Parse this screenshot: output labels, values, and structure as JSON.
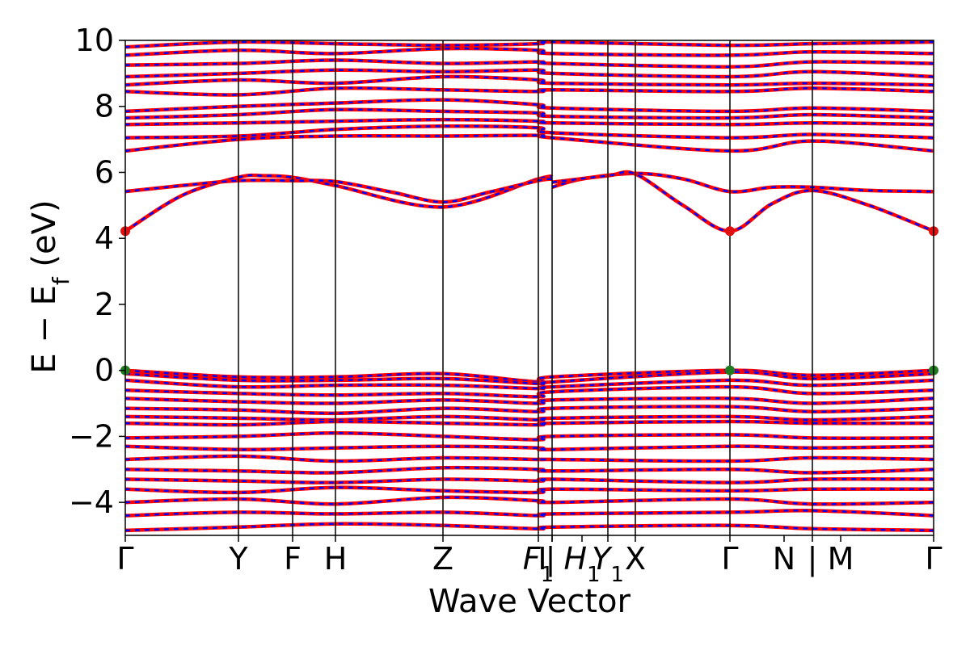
{
  "chart_data": {
    "type": "line",
    "title": "",
    "xlabel": "Wave Vector",
    "ylabel_main": "E − E",
    "ylabel_sub": "f",
    "ylabel_unit": " (eV)",
    "ylim": [
      -5,
      10
    ],
    "yticks": [
      "−4",
      "−2",
      "0",
      "2",
      "4",
      "6",
      "8",
      "10"
    ],
    "ytick_values": [
      -4,
      -2,
      0,
      2,
      4,
      6,
      8,
      10
    ],
    "xlim": [
      0,
      1
    ],
    "kpoints": [
      {
        "label": "Γ",
        "x": 0.0
      },
      {
        "label": "Y",
        "x": 0.14
      },
      {
        "label": "F",
        "x": 0.207
      },
      {
        "label": "H",
        "x": 0.26
      },
      {
        "label": "Z",
        "x": 0.393
      },
      {
        "label": "F",
        "sub": "1",
        "x": 0.511
      },
      {
        "label": "I",
        "x": 0.528
      },
      {
        "label": "|",
        "x": 0.528
      },
      {
        "label": "H",
        "sub": "1",
        "x": 0.565
      },
      {
        "label": "Y",
        "sub": "1",
        "x": 0.597
      },
      {
        "label": "X",
        "x": 0.631
      },
      {
        "label": "Γ",
        "x": 0.748
      },
      {
        "label": "N",
        "x": 0.815
      },
      {
        "label": "|",
        "x": 0.85
      },
      {
        "label": "M",
        "x": 0.885
      },
      {
        "label": "Γ",
        "x": 1.0
      }
    ],
    "vlines": [
      0.14,
      0.207,
      0.26,
      0.393,
      0.511,
      0.528,
      0.597,
      0.631,
      0.748,
      0.85
    ],
    "series": [
      {
        "values_x": [
          0.0,
          0.07,
          0.14,
          0.17,
          0.207,
          0.26,
          0.393,
          0.511,
          0.528
        ],
        "values_y": [
          4.22,
          5.3,
          5.85,
          5.9,
          5.85,
          5.6,
          4.95,
          5.8,
          5.85
        ]
      },
      {
        "values_x": [
          0.0,
          0.07,
          0.14,
          0.207,
          0.26,
          0.33,
          0.393,
          0.45,
          0.511,
          0.528
        ],
        "values_y": [
          5.42,
          5.6,
          5.75,
          5.75,
          5.72,
          5.4,
          5.1,
          5.4,
          5.75,
          5.8
        ]
      },
      {
        "values_x": [
          0.528,
          0.565,
          0.631,
          0.69,
          0.748,
          0.8,
          0.85,
          0.92,
          1.0
        ],
        "values_y": [
          5.55,
          5.8,
          5.97,
          5.8,
          5.42,
          5.55,
          5.55,
          5.45,
          5.42
        ]
      },
      {
        "values_x": [
          0.528,
          0.597,
          0.631,
          0.69,
          0.748,
          0.8,
          0.85,
          0.92,
          1.0
        ],
        "values_y": [
          5.7,
          5.9,
          5.95,
          5.0,
          4.22,
          5.05,
          5.45,
          5.0,
          4.22
        ]
      },
      {
        "values_x": [
          0.0,
          0.14,
          0.26,
          0.393,
          0.511,
          0.528,
          0.748,
          0.85,
          1.0
        ],
        "values_y": [
          6.65,
          7.0,
          7.1,
          7.1,
          7.12,
          7.05,
          6.65,
          6.95,
          6.65
        ]
      },
      {
        "values_x": [
          0.0,
          0.14,
          0.26,
          0.393,
          0.511,
          0.528,
          0.748,
          0.85,
          1.0
        ],
        "values_y": [
          7.05,
          7.1,
          7.3,
          7.4,
          7.35,
          7.2,
          7.05,
          7.15,
          7.05
        ]
      },
      {
        "values_x": [
          0.0,
          0.14,
          0.26,
          0.393,
          0.511,
          0.528,
          0.748,
          0.85,
          1.0
        ],
        "values_y": [
          7.45,
          7.5,
          7.55,
          7.6,
          7.55,
          7.5,
          7.45,
          7.5,
          7.45
        ]
      },
      {
        "values_x": [
          0.0,
          0.14,
          0.26,
          0.393,
          0.511,
          0.528,
          0.748,
          0.85,
          1.0
        ],
        "values_y": [
          7.65,
          7.75,
          7.9,
          7.85,
          7.8,
          7.7,
          7.65,
          7.75,
          7.65
        ]
      },
      {
        "values_x": [
          0.0,
          0.14,
          0.26,
          0.393,
          0.511,
          0.528,
          0.748,
          0.85,
          1.0
        ],
        "values_y": [
          7.85,
          8.0,
          8.1,
          8.2,
          8.05,
          7.95,
          7.85,
          7.95,
          7.85
        ]
      },
      {
        "values_x": [
          0.0,
          0.14,
          0.26,
          0.393,
          0.511,
          0.528,
          0.748,
          0.85,
          1.0
        ],
        "values_y": [
          8.45,
          8.35,
          8.55,
          8.5,
          8.45,
          8.5,
          8.45,
          8.55,
          8.45
        ]
      },
      {
        "values_x": [
          0.0,
          0.14,
          0.26,
          0.393,
          0.511,
          0.528,
          0.748,
          0.85,
          1.0
        ],
        "values_y": [
          8.65,
          8.8,
          8.7,
          8.9,
          8.8,
          8.7,
          8.65,
          8.7,
          8.65
        ]
      },
      {
        "values_x": [
          0.0,
          0.14,
          0.26,
          0.393,
          0.511,
          0.528,
          0.748,
          0.85,
          1.0
        ],
        "values_y": [
          8.9,
          9.0,
          9.1,
          9.05,
          9.1,
          9.0,
          8.9,
          9.05,
          8.9
        ]
      },
      {
        "values_x": [
          0.0,
          0.14,
          0.26,
          0.393,
          0.511,
          0.528,
          0.748,
          0.85,
          1.0
        ],
        "values_y": [
          9.25,
          9.3,
          9.4,
          9.3,
          9.35,
          9.3,
          9.2,
          9.35,
          9.3
        ]
      },
      {
        "values_x": [
          0.0,
          0.14,
          0.26,
          0.393,
          0.511,
          0.528,
          0.748,
          0.85,
          1.0
        ],
        "values_y": [
          9.55,
          9.7,
          9.6,
          9.75,
          9.7,
          9.6,
          9.55,
          9.65,
          9.6
        ]
      },
      {
        "values_x": [
          0.0,
          0.14,
          0.26,
          0.393,
          0.511,
          0.528,
          0.748,
          0.85,
          1.0
        ],
        "values_y": [
          9.8,
          9.95,
          9.9,
          9.85,
          9.9,
          9.95,
          9.85,
          9.9,
          9.95
        ]
      },
      {
        "values_x": [
          0.0,
          0.14,
          0.26,
          0.393,
          0.511,
          0.528,
          0.748,
          0.85,
          1.0
        ],
        "values_y": [
          0.0,
          -0.2,
          -0.2,
          -0.1,
          -0.35,
          -0.2,
          0.0,
          -0.15,
          0.0
        ]
      },
      {
        "values_x": [
          0.0,
          0.14,
          0.26,
          0.393,
          0.511,
          0.528,
          0.748,
          0.85,
          1.0
        ],
        "values_y": [
          -0.1,
          -0.3,
          -0.3,
          -0.25,
          -0.4,
          -0.35,
          -0.05,
          -0.25,
          -0.1
        ]
      },
      {
        "values_x": [
          0.0,
          0.14,
          0.26,
          0.393,
          0.511,
          0.528,
          0.748,
          0.85,
          1.0
        ],
        "values_y": [
          -0.3,
          -0.5,
          -0.45,
          -0.45,
          -0.55,
          -0.5,
          -0.3,
          -0.45,
          -0.3
        ]
      },
      {
        "values_x": [
          0.0,
          0.14,
          0.26,
          0.393,
          0.511,
          0.528,
          0.748,
          0.85,
          1.0
        ],
        "values_y": [
          -0.6,
          -0.7,
          -0.75,
          -0.7,
          -0.8,
          -0.65,
          -0.5,
          -0.7,
          -0.6
        ]
      },
      {
        "values_x": [
          0.0,
          0.14,
          0.26,
          0.393,
          0.511,
          0.528,
          0.748,
          0.85,
          1.0
        ],
        "values_y": [
          -0.85,
          -0.95,
          -1.0,
          -0.9,
          -1.0,
          -0.9,
          -0.85,
          -1.0,
          -0.85
        ]
      },
      {
        "values_x": [
          0.0,
          0.14,
          0.26,
          0.393,
          0.511,
          0.528,
          0.748,
          0.85,
          1.0
        ],
        "values_y": [
          -1.15,
          -1.2,
          -1.3,
          -1.15,
          -1.25,
          -1.15,
          -1.1,
          -1.25,
          -1.15
        ]
      },
      {
        "values_x": [
          0.0,
          0.14,
          0.26,
          0.393,
          0.511,
          0.528,
          0.748,
          0.85,
          1.0
        ],
        "values_y": [
          -1.4,
          -1.45,
          -1.5,
          -1.4,
          -1.5,
          -1.45,
          -1.4,
          -1.5,
          -1.4
        ]
      },
      {
        "values_x": [
          0.0,
          0.14,
          0.26,
          0.393,
          0.511,
          0.528,
          0.748,
          0.85,
          1.0
        ],
        "values_y": [
          -1.6,
          -1.65,
          -1.55,
          -1.6,
          -1.65,
          -1.6,
          -1.55,
          -1.6,
          -1.6
        ]
      },
      {
        "values_x": [
          0.0,
          0.14,
          0.26,
          0.393,
          0.511,
          0.528,
          0.748,
          0.85,
          1.0
        ],
        "values_y": [
          -2.05,
          -2.0,
          -1.9,
          -2.0,
          -2.1,
          -2.0,
          -1.95,
          -2.05,
          -2.05
        ]
      },
      {
        "values_x": [
          0.0,
          0.14,
          0.26,
          0.393,
          0.511,
          0.528,
          0.748,
          0.85,
          1.0
        ],
        "values_y": [
          -2.3,
          -2.4,
          -2.35,
          -2.3,
          -2.35,
          -2.4,
          -2.3,
          -2.35,
          -2.3
        ]
      },
      {
        "values_x": [
          0.0,
          0.14,
          0.26,
          0.393,
          0.511,
          0.528,
          0.748,
          0.85,
          1.0
        ],
        "values_y": [
          -2.7,
          -2.6,
          -2.75,
          -2.65,
          -2.7,
          -2.7,
          -2.75,
          -2.65,
          -2.7
        ]
      },
      {
        "values_x": [
          0.0,
          0.14,
          0.26,
          0.393,
          0.511,
          0.528,
          0.748,
          0.85,
          1.0
        ],
        "values_y": [
          -3.0,
          -3.05,
          -3.1,
          -2.95,
          -3.0,
          -3.05,
          -3.0,
          -3.1,
          -3.0
        ]
      },
      {
        "values_x": [
          0.0,
          0.14,
          0.26,
          0.393,
          0.511,
          0.528,
          0.748,
          0.85,
          1.0
        ],
        "values_y": [
          -3.3,
          -3.35,
          -3.4,
          -3.3,
          -3.35,
          -3.3,
          -3.4,
          -3.3,
          -3.3
        ]
      },
      {
        "values_x": [
          0.0,
          0.14,
          0.26,
          0.393,
          0.511,
          0.528,
          0.748,
          0.85,
          1.0
        ],
        "values_y": [
          -3.6,
          -3.7,
          -3.55,
          -3.65,
          -3.7,
          -3.6,
          -3.65,
          -3.6,
          -3.6
        ]
      },
      {
        "values_x": [
          0.0,
          0.14,
          0.26,
          0.393,
          0.511,
          0.528,
          0.748,
          0.85,
          1.0
        ],
        "values_y": [
          -4.0,
          -3.9,
          -4.05,
          -3.85,
          -3.95,
          -4.0,
          -3.9,
          -4.05,
          -4.0
        ]
      },
      {
        "values_x": [
          0.0,
          0.14,
          0.26,
          0.393,
          0.511,
          0.528,
          0.748,
          0.85,
          1.0
        ],
        "values_y": [
          -4.4,
          -4.3,
          -4.35,
          -4.3,
          -4.4,
          -4.35,
          -4.3,
          -4.25,
          -4.4
        ]
      },
      {
        "values_x": [
          0.0,
          0.14,
          0.26,
          0.393,
          0.511,
          0.528,
          0.748,
          0.85,
          1.0
        ],
        "values_y": [
          -4.85,
          -4.75,
          -4.65,
          -4.7,
          -4.8,
          -4.75,
          -4.7,
          -4.8,
          -4.85
        ]
      }
    ],
    "markers": [
      {
        "x": 0.0,
        "y": 4.22,
        "color": "#e01010"
      },
      {
        "x": 0.748,
        "y": 4.22,
        "color": "#e01010"
      },
      {
        "x": 1.0,
        "y": 4.22,
        "color": "#e01010"
      },
      {
        "x": 0.0,
        "y": 0.0,
        "color": "#207a20"
      },
      {
        "x": 0.748,
        "y": 0.0,
        "color": "#207a20"
      },
      {
        "x": 1.0,
        "y": 0.0,
        "color": "#207a20"
      }
    ],
    "line_color_primary": "#ff0000",
    "line_color_secondary": "#0000ff",
    "grid": false,
    "legend": "none"
  }
}
